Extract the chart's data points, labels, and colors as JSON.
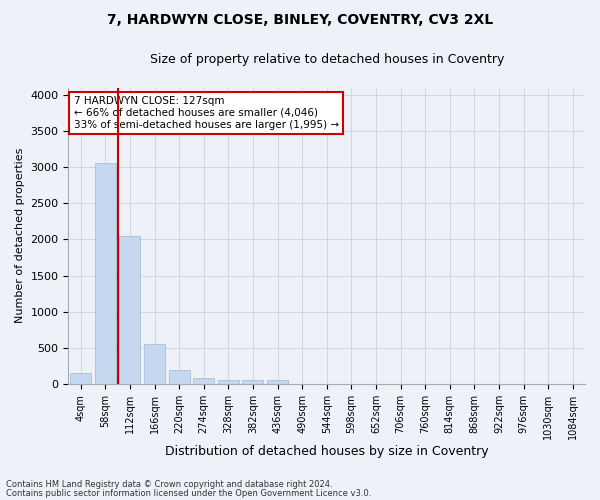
{
  "title_line1": "7, HARDWYN CLOSE, BINLEY, COVENTRY, CV3 2XL",
  "title_line2": "Size of property relative to detached houses in Coventry",
  "xlabel": "Distribution of detached houses by size in Coventry",
  "ylabel": "Number of detached properties",
  "categories": [
    "4sqm",
    "58sqm",
    "112sqm",
    "166sqm",
    "220sqm",
    "274sqm",
    "328sqm",
    "382sqm",
    "436sqm",
    "490sqm",
    "544sqm",
    "598sqm",
    "652sqm",
    "706sqm",
    "760sqm",
    "814sqm",
    "868sqm",
    "922sqm",
    "976sqm",
    "1030sqm",
    "1084sqm"
  ],
  "values": [
    150,
    3050,
    2050,
    550,
    200,
    80,
    60,
    50,
    50,
    0,
    0,
    0,
    0,
    0,
    0,
    0,
    0,
    0,
    0,
    0,
    0
  ],
  "bar_color": "#c5d8f0",
  "bar_edge_color": "#a0b8d8",
  "grid_color": "#d0d8e8",
  "background_color": "#eef2f8",
  "vline_x": 1.5,
  "vline_color": "#cc0000",
  "annotation_text": "7 HARDWYN CLOSE: 127sqm\n← 66% of detached houses are smaller (4,046)\n33% of semi-detached houses are larger (1,995) →",
  "annotation_box_color": "#ffffff",
  "annotation_box_edge": "#cc0000",
  "ylim": [
    0,
    4100
  ],
  "yticks": [
    0,
    500,
    1000,
    1500,
    2000,
    2500,
    3000,
    3500,
    4000
  ],
  "footnote1": "Contains HM Land Registry data © Crown copyright and database right 2024.",
  "footnote2": "Contains public sector information licensed under the Open Government Licence v3.0."
}
